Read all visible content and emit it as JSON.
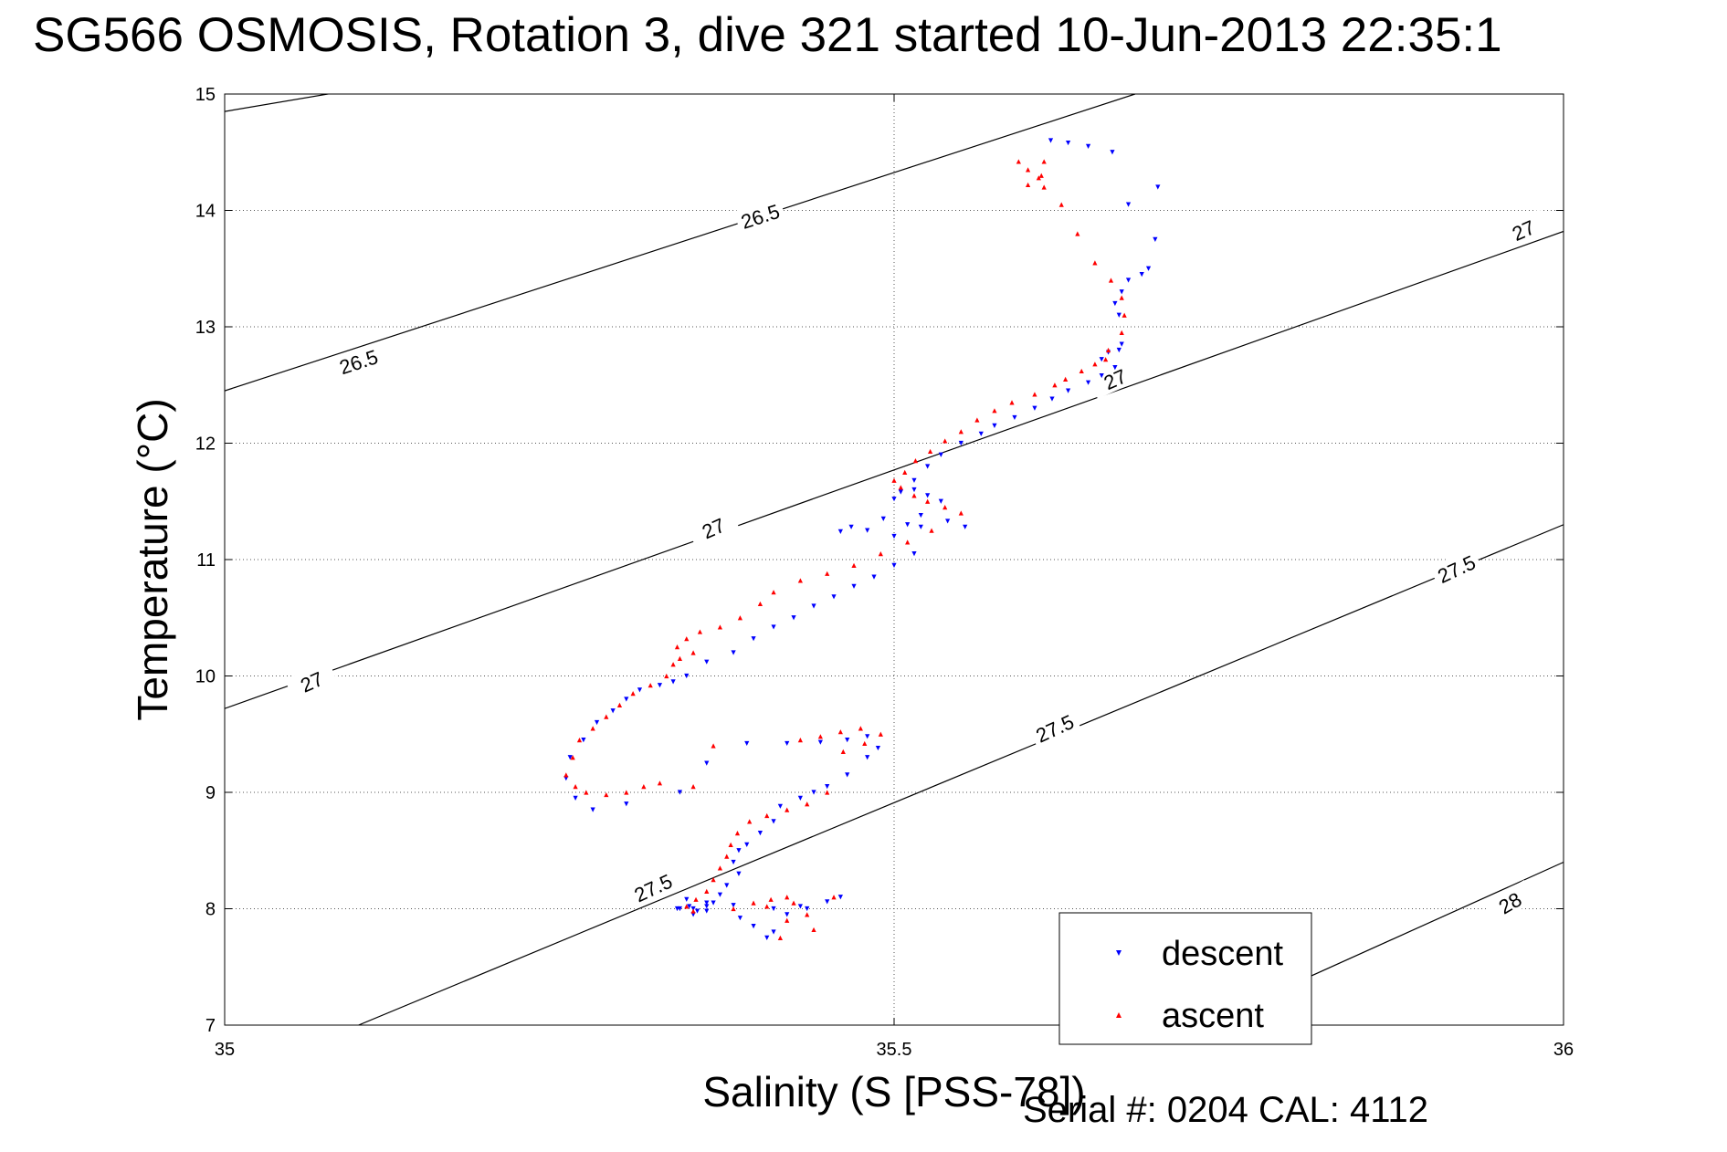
{
  "chart_data": {
    "type": "scatter",
    "title": "SG566 OSMOSIS, Rotation 3, dive 321 started 10-Jun-2013 22:35:1",
    "xlabel": "Salinity (S [PSS-78])",
    "ylabel": "Temperature (°C)",
    "xlim": [
      35,
      36
    ],
    "ylim": [
      7,
      15
    ],
    "xticks": [
      "35",
      "35.5",
      "36"
    ],
    "yticks": [
      "7",
      "8",
      "9",
      "10",
      "11",
      "12",
      "13",
      "14",
      "15"
    ],
    "grid": true,
    "legend_position": "bottom-right",
    "footnote": "Serial #: 0204  CAL: 4112",
    "contours": [
      {
        "label": "26.5",
        "points": [
          [
            35.0,
            14.85
          ],
          [
            35.18,
            15.2
          ]
        ]
      },
      {
        "label": "26.5",
        "points": [
          [
            35.0,
            12.45
          ],
          [
            35.68,
            15.0
          ]
        ]
      },
      {
        "label": "27",
        "points": [
          [
            35.0,
            9.72
          ],
          [
            36.0,
            13.82
          ]
        ]
      },
      {
        "label": "27.5",
        "points": [
          [
            35.1,
            7.0
          ],
          [
            36.0,
            11.3
          ]
        ]
      },
      {
        "label": "28",
        "points": [
          [
            35.73,
            7.0
          ],
          [
            36.0,
            8.4
          ]
        ]
      }
    ],
    "contour_labels": [
      {
        "text": "26.5",
        "x": 35.1,
        "y": 12.7,
        "angle": -18
      },
      {
        "text": "26.5",
        "x": 35.4,
        "y": 13.95,
        "angle": -18
      },
      {
        "text": "27",
        "x": 35.065,
        "y": 9.95,
        "angle": -24
      },
      {
        "text": "27",
        "x": 35.365,
        "y": 11.27,
        "angle": -24
      },
      {
        "text": "27",
        "x": 35.665,
        "y": 12.55,
        "angle": -24
      },
      {
        "text": "27",
        "x": 35.97,
        "y": 13.83,
        "angle": -24
      },
      {
        "text": "27.5",
        "x": 35.32,
        "y": 8.18,
        "angle": -25
      },
      {
        "text": "27.5",
        "x": 35.62,
        "y": 9.55,
        "angle": -25
      },
      {
        "text": "27.5",
        "x": 35.92,
        "y": 10.92,
        "angle": -25
      },
      {
        "text": "28",
        "x": 35.96,
        "y": 8.05,
        "angle": -30
      }
    ],
    "series": [
      {
        "name": "descent",
        "marker": "triangle-down",
        "color": "#0000ff",
        "x": [
          35.617,
          35.63,
          35.645,
          35.663,
          35.675,
          35.697,
          35.695,
          35.685,
          35.69,
          35.675,
          35.67,
          35.665,
          35.668,
          35.67,
          35.66,
          35.655,
          35.668,
          35.665,
          35.655,
          35.645,
          35.63,
          35.618,
          35.605,
          35.59,
          35.575,
          35.565,
          35.55,
          35.535,
          35.525,
          35.515,
          35.505,
          35.5,
          35.515,
          35.525,
          35.535,
          35.52,
          35.51,
          35.492,
          35.468,
          35.46,
          35.48,
          35.5,
          35.52,
          35.54,
          35.553,
          35.515,
          35.5,
          35.485,
          35.47,
          35.455,
          35.44,
          35.425,
          35.41,
          35.395,
          35.38,
          35.36,
          35.345,
          35.335,
          35.325,
          35.31,
          35.3,
          35.29,
          35.278,
          35.268,
          35.258,
          35.255,
          35.262,
          35.275,
          35.3,
          35.34,
          35.36,
          35.39,
          35.42,
          35.445,
          35.465,
          35.48,
          35.488,
          35.48,
          35.465,
          35.45,
          35.44,
          35.43,
          35.415,
          35.41,
          35.4,
          35.39,
          35.384,
          35.38,
          35.384,
          35.375,
          35.37,
          35.365,
          35.36,
          35.353,
          35.35,
          35.345,
          35.338,
          35.347,
          35.36,
          35.38,
          35.41,
          35.43,
          35.45,
          35.46,
          35.435,
          35.42,
          35.41,
          35.405,
          35.395,
          35.385,
          35.36,
          35.34,
          35.35
        ],
        "y": [
          14.6,
          14.58,
          14.55,
          14.5,
          14.05,
          14.2,
          13.75,
          13.45,
          13.5,
          13.4,
          13.3,
          13.2,
          13.1,
          12.85,
          12.78,
          12.72,
          12.8,
          12.65,
          12.58,
          12.52,
          12.45,
          12.38,
          12.3,
          12.22,
          12.15,
          12.08,
          12.0,
          11.9,
          11.8,
          11.68,
          11.58,
          11.52,
          11.6,
          11.55,
          11.5,
          11.38,
          11.3,
          11.35,
          11.28,
          11.24,
          11.25,
          11.2,
          11.28,
          11.33,
          11.28,
          11.05,
          10.95,
          10.85,
          10.77,
          10.68,
          10.6,
          10.5,
          10.42,
          10.32,
          10.2,
          10.12,
          10.0,
          9.95,
          9.92,
          9.88,
          9.8,
          9.7,
          9.6,
          9.45,
          9.3,
          9.12,
          8.95,
          8.85,
          8.9,
          9.0,
          9.25,
          9.42,
          9.42,
          9.43,
          9.45,
          9.48,
          9.38,
          9.3,
          9.15,
          9.05,
          9.0,
          8.95,
          8.88,
          8.75,
          8.65,
          8.55,
          8.5,
          8.4,
          8.3,
          8.2,
          8.12,
          8.05,
          8.02,
          7.98,
          8.0,
          8.08,
          8.0,
          8.02,
          8.05,
          8.03,
          8.0,
          8.02,
          8.06,
          8.1,
          8.0,
          7.95,
          7.8,
          7.75,
          7.85,
          7.92,
          7.98,
          8.0,
          7.95
        ]
      },
      {
        "name": "ascent",
        "marker": "triangle-up",
        "color": "#ff0000",
        "x": [
          35.593,
          35.6,
          35.608,
          35.612,
          35.625,
          35.637,
          35.65,
          35.662,
          35.67,
          35.672,
          35.67,
          35.66,
          35.658,
          35.65,
          35.64,
          35.628,
          35.62,
          35.605,
          35.588,
          35.575,
          35.562,
          35.55,
          35.538,
          35.527,
          35.516,
          35.508,
          35.5,
          35.505,
          35.515,
          35.525,
          35.538,
          35.55,
          35.528,
          35.51,
          35.49,
          35.47,
          35.45,
          35.43,
          35.41,
          35.4,
          35.385,
          35.37,
          35.355,
          35.345,
          35.338,
          35.35,
          35.34,
          35.335,
          35.33,
          35.318,
          35.305,
          35.295,
          35.285,
          35.275,
          35.265,
          35.26,
          35.255,
          35.262,
          35.27,
          35.285,
          35.3,
          35.313,
          35.325,
          35.35,
          35.365,
          35.43,
          35.445,
          35.46,
          35.475,
          35.49,
          35.478,
          35.462,
          35.45,
          35.435,
          35.42,
          35.405,
          35.392,
          35.383,
          35.378,
          35.375,
          35.37,
          35.365,
          35.36,
          35.352,
          35.345,
          35.35,
          35.38,
          35.395,
          35.408,
          35.42,
          35.425,
          35.435,
          35.455,
          35.44,
          35.415,
          35.405,
          35.42,
          35.612,
          35.61,
          35.6
        ],
        "y": [
          14.42,
          14.35,
          14.28,
          14.2,
          14.05,
          13.8,
          13.55,
          13.4,
          13.25,
          13.1,
          12.95,
          12.8,
          12.72,
          12.68,
          12.62,
          12.55,
          12.5,
          12.42,
          12.35,
          12.28,
          12.2,
          12.1,
          12.02,
          11.93,
          11.85,
          11.75,
          11.68,
          11.62,
          11.55,
          11.5,
          11.45,
          11.4,
          11.25,
          11.15,
          11.05,
          10.95,
          10.88,
          10.82,
          10.72,
          10.62,
          10.5,
          10.42,
          10.38,
          10.32,
          10.25,
          10.2,
          10.15,
          10.1,
          10.0,
          9.92,
          9.85,
          9.75,
          9.65,
          9.55,
          9.45,
          9.3,
          9.15,
          9.05,
          9.0,
          8.98,
          9.0,
          9.05,
          9.08,
          9.05,
          9.4,
          9.45,
          9.48,
          9.52,
          9.55,
          9.5,
          9.42,
          9.35,
          9.0,
          8.9,
          8.85,
          8.8,
          8.75,
          8.65,
          8.55,
          8.45,
          8.35,
          8.25,
          8.15,
          8.08,
          8.02,
          7.98,
          8.0,
          8.05,
          8.08,
          8.1,
          8.05,
          7.95,
          8.1,
          7.82,
          7.75,
          8.02,
          7.9,
          14.42,
          14.3,
          14.22
        ]
      }
    ]
  }
}
